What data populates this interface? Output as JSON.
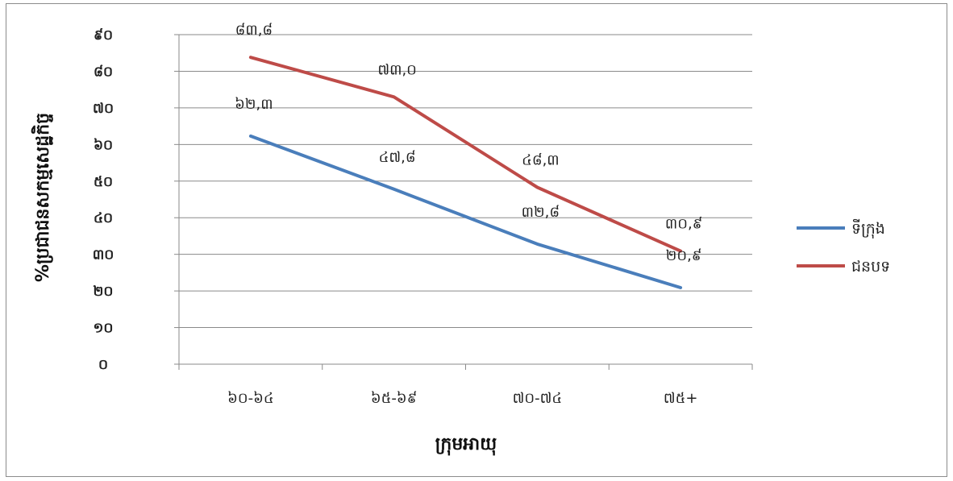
{
  "chart_data": {
    "type": "line",
    "xlabel": "ក្រុមអាយុ",
    "ylabel": "%ប្រជាជនសកម្មសេដ្ឋកិច្ច",
    "categories": [
      "៦០-៦៤",
      "៦៥-៦៩",
      "៧០-៧៤",
      "៧៥+"
    ],
    "ylim": [
      0,
      90
    ],
    "yticks": [
      0,
      10,
      20,
      30,
      40,
      50,
      60,
      70,
      80,
      90
    ],
    "ytick_labels": [
      "០",
      "១០",
      "២០",
      "៣០",
      "៤០",
      "៥០",
      "៦០",
      "៧០",
      "៨០",
      "៩០"
    ],
    "grid": true,
    "legend_position": "right",
    "series": [
      {
        "name": "ទីក្រុង",
        "color": "#4a7ebb",
        "values": [
          62.3,
          47.8,
          32.8,
          20.9
        ],
        "labels": [
          "៦២,៣",
          "៤៧,៨",
          "៣២,៨",
          "២០,៩"
        ]
      },
      {
        "name": "ជនបទ",
        "color": "#be4b48",
        "values": [
          83.8,
          73.0,
          48.3,
          30.9
        ],
        "labels": [
          "៨៣,៨",
          "៧៣,០",
          "៤៨,៣",
          "៣០,៩"
        ]
      }
    ]
  }
}
